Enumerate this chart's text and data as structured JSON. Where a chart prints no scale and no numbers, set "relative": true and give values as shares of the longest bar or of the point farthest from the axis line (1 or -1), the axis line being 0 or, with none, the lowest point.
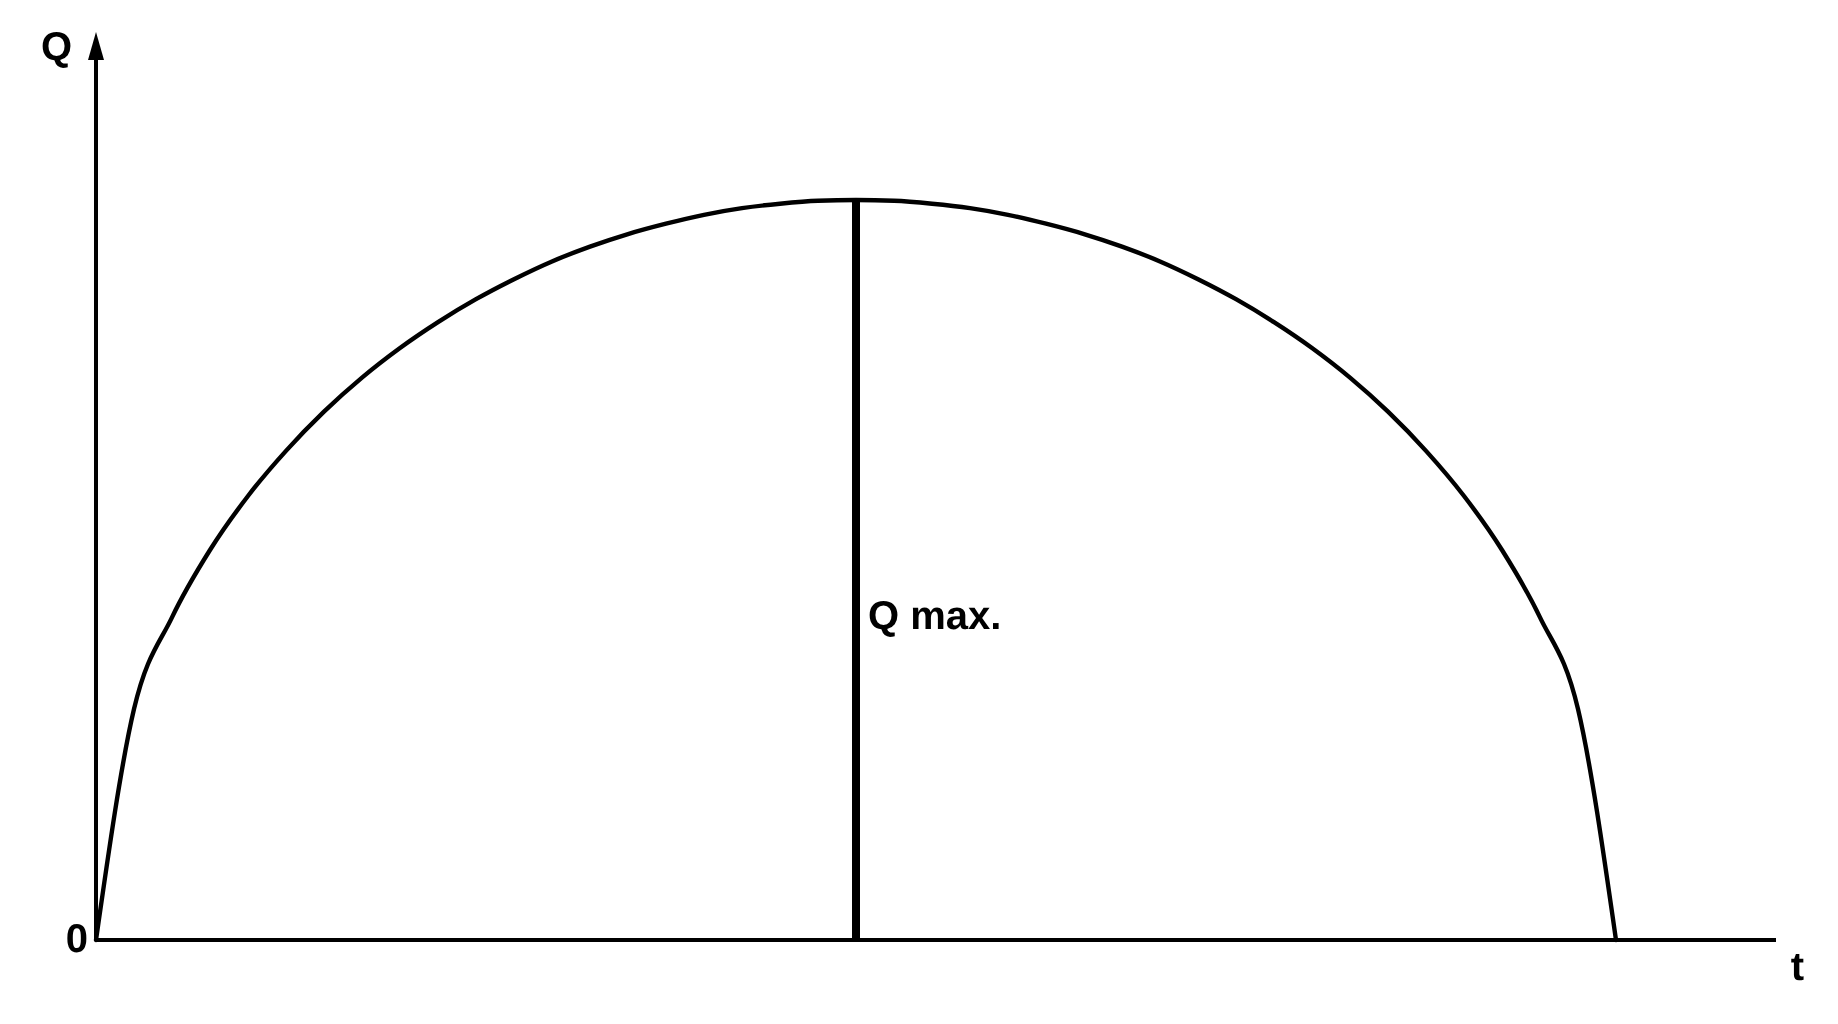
{
  "chart_data": {
    "type": "line",
    "relative": true,
    "xlabel": "t",
    "ylabel": "Q",
    "categories": [
      null,
      null,
      null,
      null,
      null,
      null,
      null,
      null,
      null,
      null,
      null,
      null,
      null,
      null,
      null,
      null,
      null,
      null,
      null,
      null,
      null,
      null,
      null,
      null,
      null,
      null,
      null,
      null,
      null,
      null,
      null,
      null,
      null,
      null,
      null,
      null,
      null,
      null,
      null,
      null,
      null
    ],
    "series": [
      {
        "color": "#000000",
        "values": [
          0,
          0.312,
          0.436,
          0.527,
          0.6,
          0.661,
          0.714,
          0.76,
          0.8,
          0.835,
          0.866,
          0.893,
          0.917,
          0.937,
          0.954,
          0.968,
          0.98,
          0.989,
          0.995,
          0.999,
          1,
          0.999,
          0.995,
          0.989,
          0.98,
          0.968,
          0.954,
          0.937,
          0.917,
          0.893,
          0.866,
          0.835,
          0.8,
          0.76,
          0.714,
          0.661,
          0.6,
          0.527,
          0.436,
          0.312,
          0
        ]
      }
    ],
    "annotations": [
      "Q max.",
      "0"
    ],
    "grid": false
  }
}
